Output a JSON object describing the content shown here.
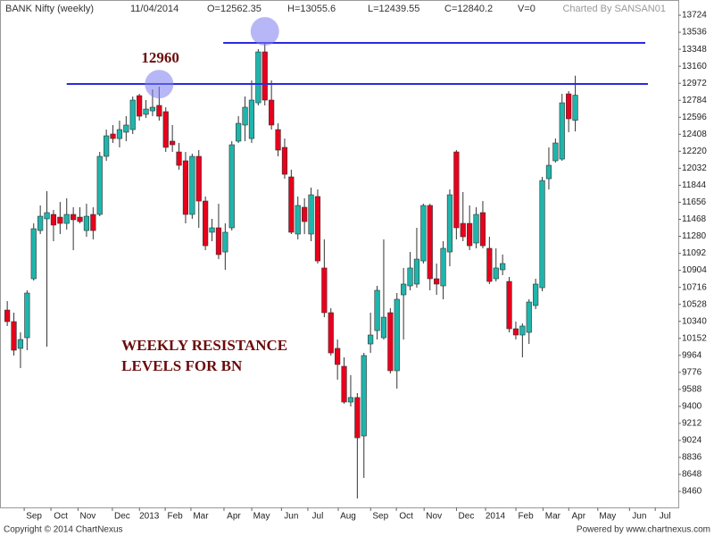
{
  "header": {
    "title": "BANK Nifty (weekly)",
    "date": "11/04/2014",
    "open": "O=12562.35",
    "high": "H=13055.6",
    "low": "L=12439.55",
    "close": "C=12840.2",
    "volume": "V=0",
    "credit": "Charted By SANSAN01"
  },
  "footer": {
    "copyright": "Copyright © 2014 ChartNexus",
    "powered": "Powered by www.chartnexus.com"
  },
  "chart_data": {
    "type": "candlestick",
    "open": [
      10465,
      10337,
      10041,
      10159,
      10811,
      11344,
      11473,
      11522,
      11492,
      11423,
      11522,
      11492,
      11344,
      11522,
      11522,
      12164,
      12411,
      12361,
      12431,
      12460,
      12835,
      12628,
      12667,
      12727,
      12658,
      12332,
      12213,
      12115,
      11522,
      12164,
      11670,
      11325,
      11374,
      11107,
      11374,
      12332,
      12510,
      12361,
      12756,
      13319,
      12786,
      12460,
      12263,
      11937,
      11305,
      11601,
      11305,
      11720,
      10930,
      10436,
      10041,
      9843,
      9448,
      9498,
      9073,
      10090,
      10238,
      10159,
      10436,
      9794,
      10633,
      10732,
      10752,
      11008,
      11621,
      10811,
      10732,
      11107,
      12213,
      11423,
      11423,
      11206,
      11542,
      11147,
      10811,
      10910,
      10781,
      10258,
      10189,
      10218,
      10515,
      10712,
      11917,
      12115,
      12134,
      12855,
      12562.35
    ],
    "high": [
      10564,
      10436,
      10218,
      10683,
      11423,
      11621,
      11779,
      11571,
      11660,
      11700,
      11601,
      11601,
      11640,
      11601,
      12213,
      12460,
      12510,
      12559,
      12608,
      12826,
      12855,
      12786,
      12904,
      12934,
      12707,
      12510,
      12312,
      12213,
      12194,
      12233,
      11720,
      11473,
      11640,
      11423,
      12332,
      12608,
      12826,
      13003,
      13349,
      13418,
      13003,
      12529,
      12361,
      12016,
      11720,
      11700,
      11818,
      11798,
      11246,
      10485,
      10139,
      9942,
      9745,
      9547,
      9991,
      10436,
      10732,
      11246,
      10485,
      10653,
      10930,
      11107,
      11374,
      11640,
      11640,
      10979,
      11226,
      11798,
      12233,
      11769,
      11621,
      11601,
      11670,
      11275,
      11147,
      11078,
      10831,
      10337,
      10317,
      10584,
      10811,
      11937,
      12263,
      12361,
      12855,
      12885,
      13055.6
    ],
    "low": [
      10288,
      9962,
      9823,
      10021,
      10791,
      11305,
      10060,
      11226,
      11305,
      11354,
      11127,
      11423,
      11275,
      11246,
      11502,
      12115,
      12312,
      12263,
      12332,
      12411,
      12559,
      12589,
      12608,
      12559,
      12213,
      12213,
      12016,
      11423,
      11473,
      11374,
      11127,
      11226,
      11028,
      10910,
      11344,
      12312,
      12332,
      12312,
      12727,
      12727,
      12460,
      12164,
      11917,
      11305,
      11246,
      11305,
      11226,
      10979,
      10386,
      9962,
      9695,
      9429,
      9399,
      8382,
      8609,
      9991,
      10139,
      10139,
      9764,
      9596,
      10139,
      10683,
      10712,
      10979,
      10683,
      10633,
      10584,
      10949,
      11246,
      11226,
      11127,
      11147,
      11147,
      10752,
      10781,
      10851,
      10218,
      10139,
      9942,
      10090,
      10475,
      10673,
      11798,
      12095,
      12115,
      12431,
      12439.55
    ],
    "close": [
      10337,
      10021,
      10139,
      10653,
      11364,
      11502,
      11542,
      11404,
      11423,
      11522,
      11463,
      11443,
      11502,
      11344,
      12164,
      12391,
      12361,
      12460,
      12510,
      12786,
      12608,
      12687,
      12707,
      12608,
      12263,
      12292,
      12065,
      11522,
      12164,
      11670,
      11176,
      11374,
      11078,
      11325,
      12292,
      12529,
      12707,
      12786,
      13319,
      12786,
      12510,
      12233,
      11966,
      11325,
      11621,
      11443,
      11739,
      11008,
      10436,
      9991,
      9863,
      9448,
      9498,
      9053,
      9962,
      10189,
      10683,
      10386,
      9794,
      10584,
      10752,
      10930,
      11028,
      11621,
      10811,
      10752,
      11147,
      11739,
      11374,
      11275,
      11176,
      11522,
      11176,
      10781,
      10930,
      10979,
      10258,
      10189,
      10288,
      10554,
      10752,
      11897,
      12065,
      12312,
      12756,
      12579,
      12840.2
    ],
    "up_color": "#1fb5ac",
    "down_color": "#e8001c",
    "xlim": [
      -1.1,
      101.6
    ],
    "ylim": [
      8283,
      13843
    ],
    "yticks": [
      8460,
      8648,
      8836,
      9024,
      9212,
      9400,
      9588,
      9776,
      9964,
      10152,
      10340,
      10528,
      10716,
      10904,
      11092,
      11280,
      11468,
      11656,
      11844,
      12032,
      12220,
      12408,
      12596,
      12784,
      12972,
      13160,
      13348,
      13536,
      13724
    ],
    "xticks": [
      {
        "value": 4.05,
        "label": "Sep"
      },
      {
        "value": 8.1,
        "label": "Oct"
      },
      {
        "value": 12.2,
        "label": "Nov"
      },
      {
        "value": 17.4,
        "label": "Dec"
      },
      {
        "value": 21.5,
        "label": "2013"
      },
      {
        "value": 25.4,
        "label": "Feb"
      },
      {
        "value": 29.3,
        "label": "Mar"
      },
      {
        "value": 34.3,
        "label": "Apr"
      },
      {
        "value": 38.5,
        "label": "May"
      },
      {
        "value": 43,
        "label": "Jun"
      },
      {
        "value": 47,
        "label": "Jul"
      },
      {
        "value": 51.6,
        "label": "Aug"
      },
      {
        "value": 56.5,
        "label": "Sep"
      },
      {
        "value": 60.4,
        "label": "Oct"
      },
      {
        "value": 64.6,
        "label": "Nov"
      },
      {
        "value": 69.5,
        "label": "Dec"
      },
      {
        "value": 73.9,
        "label": "2014"
      },
      {
        "value": 78.5,
        "label": "Feb"
      },
      {
        "value": 82.6,
        "label": "Mar"
      },
      {
        "value": 86.5,
        "label": "Apr"
      },
      {
        "value": 90.9,
        "label": "May"
      },
      {
        "value": 95.7,
        "label": "Jun"
      },
      {
        "value": 99.6,
        "label": "Jul"
      }
    ],
    "lines": [
      {
        "value": 12964,
        "x": [
          9,
          97
        ],
        "color": "#2b2bdd"
      },
      {
        "value": 13418,
        "x": [
          32.7,
          96.6
        ],
        "color": "#2b2bdd"
      }
    ],
    "highlights": [
      {
        "x": 23,
        "y": 12962
      },
      {
        "x": 39,
        "y": 13546
      }
    ],
    "annotations": [
      {
        "text": "12960",
        "x": 20.3,
        "y": 13240
      },
      {
        "lines": [
          "WEEKLY RESISTANCE",
          "LEVELS FOR BN"
        ],
        "x": 17.3,
        "y": 10060
      }
    ]
  }
}
